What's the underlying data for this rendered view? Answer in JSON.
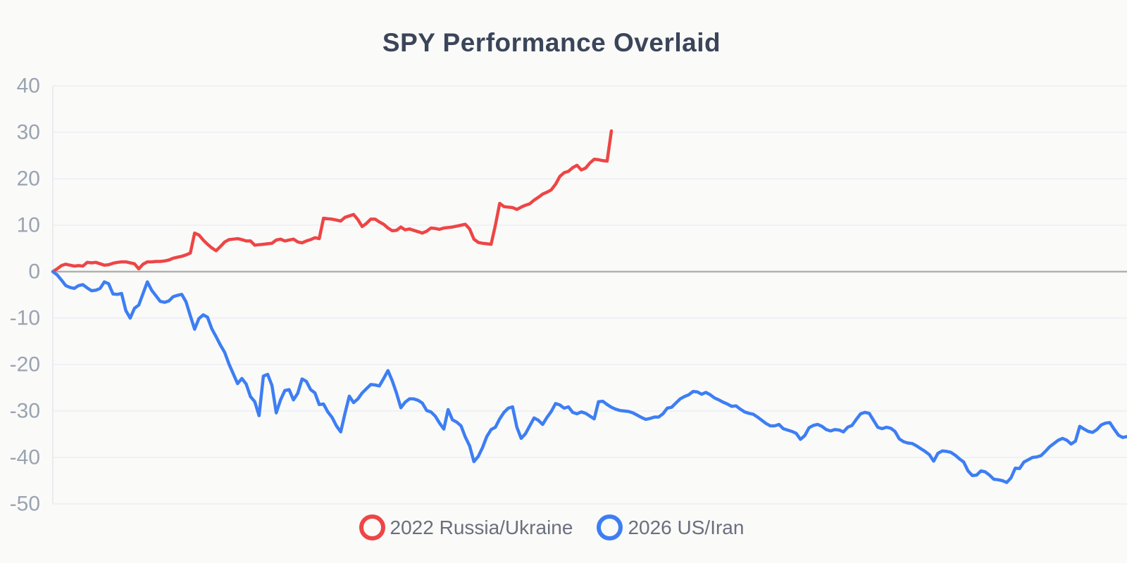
{
  "title": "SPY Performance Overlaid",
  "legend": {
    "items": [
      {
        "label": "2022 Russia/Ukraine",
        "color": "#ee4545"
      },
      {
        "label": "2026 US/Iran",
        "color": "#3d7ef3"
      }
    ]
  },
  "axis": {
    "yticks": [
      40,
      30,
      20,
      10,
      0,
      -10,
      -20,
      -30,
      -40,
      -50
    ]
  },
  "colors": {
    "background": "#fafaf9",
    "title": "#3b4559",
    "tick_label": "#9aa3b0",
    "legend_text": "#69707d",
    "gridline": "#f0f1f6",
    "zero_line": "#b1b1ae",
    "axis_border": "#e9ebf1",
    "red_series": "#ee4545",
    "blue_series": "#3d7ef3"
  },
  "chart_data": {
    "type": "line",
    "title": "SPY Performance Overlaid",
    "xlabel": "",
    "ylabel": "",
    "ylim": [
      -50,
      40
    ],
    "yticks": [
      40,
      30,
      20,
      10,
      0,
      -10,
      -20,
      -30,
      -40,
      -50
    ],
    "grid": true,
    "legend_position": "bottom",
    "x_tick_labels_shown": false,
    "series": [
      {
        "name": "2022 Russia/Ukraine",
        "color": "#ee4545",
        "values": [
          0,
          0.6,
          1.3,
          1.6,
          1.4,
          1.2,
          1.3,
          1.2,
          2.0,
          1.9,
          2.0,
          1.7,
          1.4,
          1.5,
          1.8,
          2.0,
          2.1,
          2.1,
          1.9,
          1.7,
          0.6,
          1.6,
          2.1,
          2.1,
          2.2,
          2.2,
          2.3,
          2.5,
          2.9,
          3.1,
          3.3,
          3.6,
          4.0,
          8.3,
          7.9,
          6.8,
          5.9,
          5.1,
          4.5,
          5.4,
          6.4,
          6.9,
          7.0,
          7.1,
          6.9,
          6.6,
          6.6,
          5.7,
          5.8,
          5.9,
          6.0,
          6.1,
          6.8,
          7.0,
          6.6,
          6.8,
          7.0,
          6.4,
          6.2,
          6.6,
          6.9,
          7.3,
          7.1,
          11.5,
          11.4,
          11.3,
          11.1,
          10.9,
          11.7,
          12.0,
          12.3,
          11.2,
          9.7,
          10.4,
          11.3,
          11.3,
          10.7,
          10.2,
          9.4,
          8.8,
          8.9,
          9.6,
          9.0,
          9.2,
          8.9,
          8.6,
          8.3,
          8.7,
          9.4,
          9.3,
          9.1,
          9.4,
          9.5,
          9.6,
          9.8,
          10.0,
          10.2,
          9.2,
          7.0,
          6.3,
          6.1,
          6.0,
          5.9,
          10.0,
          14.7,
          14.0,
          13.9,
          13.8,
          13.4,
          13.9,
          14.3,
          14.6,
          15.4,
          16.0,
          16.7,
          17.1,
          17.6,
          18.8,
          20.5,
          21.3,
          21.6,
          22.4,
          22.9,
          21.9,
          22.3,
          23.4,
          24.2,
          24.1,
          23.9,
          23.8,
          30.3
        ]
      },
      {
        "name": "2026 US/Iran",
        "color": "#3d7ef3",
        "values": [
          0,
          -0.7,
          -1.8,
          -3.0,
          -3.4,
          -3.6,
          -3.0,
          -2.8,
          -3.5,
          -4.1,
          -4.0,
          -3.6,
          -2.2,
          -2.6,
          -4.8,
          -4.9,
          -4.7,
          -8.4,
          -10.0,
          -7.9,
          -7.2,
          -4.7,
          -2.2,
          -4.0,
          -5.2,
          -6.4,
          -6.6,
          -6.3,
          -5.4,
          -5.1,
          -4.9,
          -6.5,
          -9.5,
          -12.4,
          -10.1,
          -9.3,
          -9.8,
          -12.3,
          -14.0,
          -15.8,
          -17.4,
          -19.9,
          -22.0,
          -24.1,
          -23.0,
          -24.2,
          -26.9,
          -28.0,
          -31.0,
          -22.5,
          -22.1,
          -24.5,
          -30.4,
          -27.6,
          -25.6,
          -25.4,
          -27.6,
          -26.2,
          -23.1,
          -23.6,
          -25.4,
          -26.1,
          -28.6,
          -28.5,
          -30.2,
          -31.4,
          -33.2,
          -34.5,
          -30.5,
          -26.8,
          -28.2,
          -27.4,
          -26.1,
          -25.2,
          -24.3,
          -24.4,
          -24.6,
          -23.0,
          -21.3,
          -23.5,
          -26.2,
          -29.3,
          -28.1,
          -27.4,
          -27.4,
          -27.7,
          -28.3,
          -29.9,
          -30.2,
          -31.1,
          -32.6,
          -33.9,
          -29.7,
          -31.9,
          -32.4,
          -33.2,
          -35.6,
          -37.5,
          -40.9,
          -39.8,
          -37.9,
          -35.5,
          -34.0,
          -33.5,
          -31.7,
          -30.3,
          -29.4,
          -29.1,
          -33.5,
          -35.9,
          -34.9,
          -33.2,
          -31.5,
          -32.0,
          -32.9,
          -31.4,
          -30.1,
          -28.4,
          -28.7,
          -29.4,
          -29.1,
          -30.3,
          -30.6,
          -30.2,
          -30.5,
          -31.1,
          -31.7,
          -28.0,
          -27.9,
          -28.6,
          -29.2,
          -29.6,
          -29.9,
          -30.0,
          -30.1,
          -30.4,
          -30.9,
          -31.4,
          -31.8,
          -31.6,
          -31.3,
          -31.3,
          -30.6,
          -29.4,
          -29.2,
          -28.3,
          -27.4,
          -26.9,
          -26.5,
          -25.8,
          -25.9,
          -26.4,
          -26.0,
          -26.5,
          -27.2,
          -27.6,
          -28.1,
          -28.5,
          -29.0,
          -28.9,
          -29.6,
          -30.2,
          -30.5,
          -30.7,
          -31.3,
          -32.0,
          -32.7,
          -33.2,
          -33.2,
          -32.9,
          -33.8,
          -34.1,
          -34.4,
          -34.8,
          -36.1,
          -35.3,
          -33.6,
          -33.1,
          -32.9,
          -33.3,
          -34.0,
          -34.3,
          -34.0,
          -34.1,
          -34.5,
          -33.5,
          -33.1,
          -31.8,
          -30.6,
          -30.3,
          -30.5,
          -32.0,
          -33.5,
          -33.8,
          -33.5,
          -33.7,
          -34.4,
          -36.0,
          -36.6,
          -36.9,
          -37.0,
          -37.5,
          -38.1,
          -38.7,
          -39.4,
          -40.8,
          -39.1,
          -38.6,
          -38.7,
          -38.9,
          -39.5,
          -40.3,
          -41.0,
          -42.9,
          -43.9,
          -43.8,
          -42.9,
          -43.1,
          -43.8,
          -44.7,
          -44.8,
          -45.0,
          -45.4,
          -44.4,
          -42.3,
          -42.4,
          -41.0,
          -40.5,
          -40.0,
          -39.9,
          -39.6,
          -38.7,
          -37.7,
          -37.0,
          -36.3,
          -35.9,
          -36.3,
          -37.1,
          -36.5,
          -33.3,
          -33.9,
          -34.4,
          -34.6,
          -34.0,
          -33.0,
          -32.6,
          -32.5,
          -33.9,
          -35.2,
          -35.7,
          -35.5
        ]
      }
    ]
  }
}
